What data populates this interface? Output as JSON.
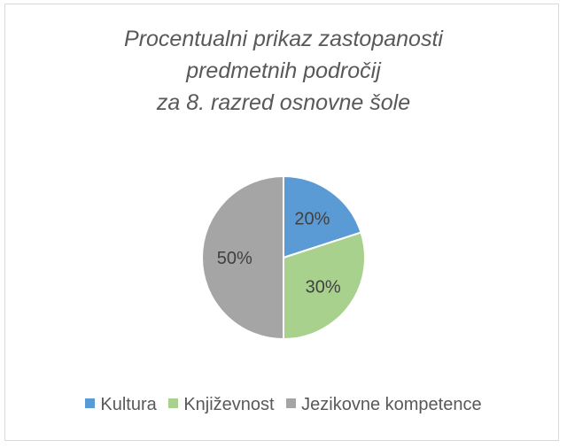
{
  "chart_data": {
    "type": "pie",
    "title_lines": [
      "Procentualni prikaz zastopanosti",
      "predmetnih področij",
      "za 8. razred osnovne šole"
    ],
    "categories": [
      "Kultura",
      "Književnost",
      "Jezikovne kompetence"
    ],
    "values": [
      20,
      30,
      50
    ],
    "data_labels": [
      "20%",
      "30%",
      "50%"
    ],
    "colors": [
      "#5b9bd5",
      "#a9d18e",
      "#a5a5a5"
    ],
    "legend_position": "bottom"
  }
}
